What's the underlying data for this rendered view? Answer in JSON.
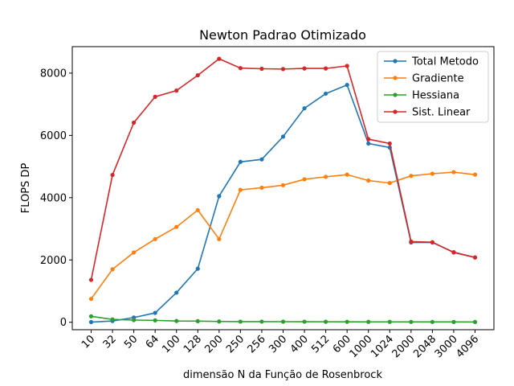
{
  "chart_data": {
    "type": "line",
    "title": "Newton Padrao Otimizado",
    "xlabel": "dimensão N da Função de Rosenbrock",
    "ylabel": "FLOPS DP",
    "categories": [
      "10",
      "32",
      "50",
      "64",
      "100",
      "128",
      "200",
      "250",
      "256",
      "300",
      "400",
      "512",
      "600",
      "1000",
      "1024",
      "2000",
      "2048",
      "3000",
      "4096"
    ],
    "ylim": [
      -240,
      8850
    ],
    "yticks": [
      "0",
      "2000",
      "4000",
      "6000",
      "8000"
    ],
    "legend_position": "top-right",
    "grid": false,
    "series": [
      {
        "name": "Total Metodo",
        "color": "#1f77b4",
        "values": [
          5,
          40,
          150,
          300,
          950,
          1720,
          4050,
          5150,
          5230,
          5960,
          6870,
          7340,
          7620,
          5740,
          5610,
          2560,
          2560,
          2250,
          2080
        ]
      },
      {
        "name": "Gradiente",
        "color": "#ff7f0e",
        "values": [
          750,
          1700,
          2240,
          2670,
          3060,
          3600,
          2670,
          4250,
          4320,
          4400,
          4590,
          4670,
          4740,
          4550,
          4470,
          4700,
          4770,
          4820,
          4740
        ]
      },
      {
        "name": "Hessiana",
        "color": "#2ca02c",
        "values": [
          190,
          90,
          70,
          60,
          40,
          35,
          25,
          20,
          20,
          18,
          16,
          15,
          14,
          12,
          12,
          10,
          10,
          9,
          8
        ]
      },
      {
        "name": "Sist. Linear",
        "color": "#d62728",
        "values": [
          1360,
          4730,
          6410,
          7240,
          7440,
          7930,
          8460,
          8160,
          8140,
          8130,
          8150,
          8150,
          8230,
          5880,
          5740,
          2590,
          2570,
          2240,
          2080
        ]
      }
    ]
  }
}
